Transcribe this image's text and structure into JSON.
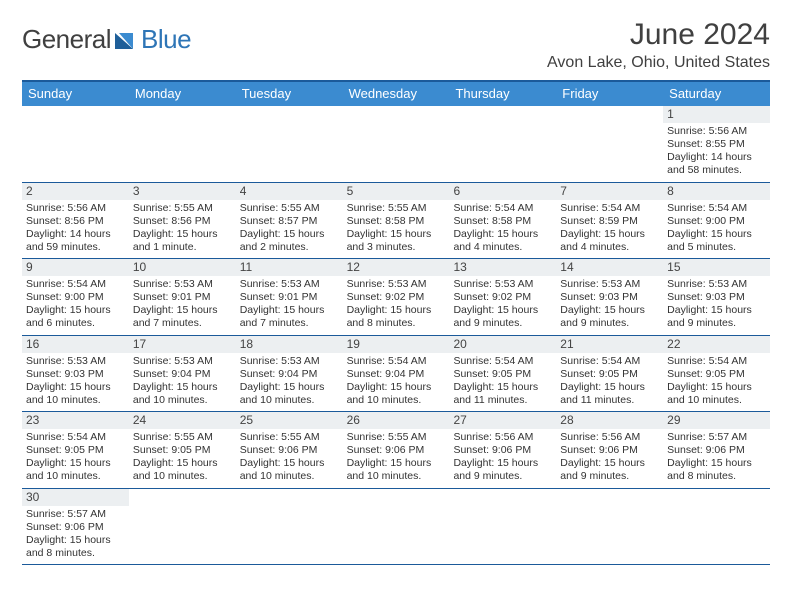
{
  "logo": {
    "dark": "General",
    "blue": "Blue"
  },
  "title": "June 2024",
  "location": "Avon Lake, Ohio, United States",
  "header_bg": "#3b8bd0",
  "border_color": "#1b5a9a",
  "dayHeaders": [
    "Sunday",
    "Monday",
    "Tuesday",
    "Wednesday",
    "Thursday",
    "Friday",
    "Saturday"
  ],
  "weeks": [
    [
      null,
      null,
      null,
      null,
      null,
      null,
      {
        "n": "1",
        "sr": "5:56 AM",
        "ss": "8:55 PM",
        "dl": "14 hours and 58 minutes."
      }
    ],
    [
      {
        "n": "2",
        "sr": "5:56 AM",
        "ss": "8:56 PM",
        "dl": "14 hours and 59 minutes."
      },
      {
        "n": "3",
        "sr": "5:55 AM",
        "ss": "8:56 PM",
        "dl": "15 hours and 1 minute."
      },
      {
        "n": "4",
        "sr": "5:55 AM",
        "ss": "8:57 PM",
        "dl": "15 hours and 2 minutes."
      },
      {
        "n": "5",
        "sr": "5:55 AM",
        "ss": "8:58 PM",
        "dl": "15 hours and 3 minutes."
      },
      {
        "n": "6",
        "sr": "5:54 AM",
        "ss": "8:58 PM",
        "dl": "15 hours and 4 minutes."
      },
      {
        "n": "7",
        "sr": "5:54 AM",
        "ss": "8:59 PM",
        "dl": "15 hours and 4 minutes."
      },
      {
        "n": "8",
        "sr": "5:54 AM",
        "ss": "9:00 PM",
        "dl": "15 hours and 5 minutes."
      }
    ],
    [
      {
        "n": "9",
        "sr": "5:54 AM",
        "ss": "9:00 PM",
        "dl": "15 hours and 6 minutes."
      },
      {
        "n": "10",
        "sr": "5:53 AM",
        "ss": "9:01 PM",
        "dl": "15 hours and 7 minutes."
      },
      {
        "n": "11",
        "sr": "5:53 AM",
        "ss": "9:01 PM",
        "dl": "15 hours and 7 minutes."
      },
      {
        "n": "12",
        "sr": "5:53 AM",
        "ss": "9:02 PM",
        "dl": "15 hours and 8 minutes."
      },
      {
        "n": "13",
        "sr": "5:53 AM",
        "ss": "9:02 PM",
        "dl": "15 hours and 9 minutes."
      },
      {
        "n": "14",
        "sr": "5:53 AM",
        "ss": "9:03 PM",
        "dl": "15 hours and 9 minutes."
      },
      {
        "n": "15",
        "sr": "5:53 AM",
        "ss": "9:03 PM",
        "dl": "15 hours and 9 minutes."
      }
    ],
    [
      {
        "n": "16",
        "sr": "5:53 AM",
        "ss": "9:03 PM",
        "dl": "15 hours and 10 minutes."
      },
      {
        "n": "17",
        "sr": "5:53 AM",
        "ss": "9:04 PM",
        "dl": "15 hours and 10 minutes."
      },
      {
        "n": "18",
        "sr": "5:53 AM",
        "ss": "9:04 PM",
        "dl": "15 hours and 10 minutes."
      },
      {
        "n": "19",
        "sr": "5:54 AM",
        "ss": "9:04 PM",
        "dl": "15 hours and 10 minutes."
      },
      {
        "n": "20",
        "sr": "5:54 AM",
        "ss": "9:05 PM",
        "dl": "15 hours and 11 minutes."
      },
      {
        "n": "21",
        "sr": "5:54 AM",
        "ss": "9:05 PM",
        "dl": "15 hours and 11 minutes."
      },
      {
        "n": "22",
        "sr": "5:54 AM",
        "ss": "9:05 PM",
        "dl": "15 hours and 10 minutes."
      }
    ],
    [
      {
        "n": "23",
        "sr": "5:54 AM",
        "ss": "9:05 PM",
        "dl": "15 hours and 10 minutes."
      },
      {
        "n": "24",
        "sr": "5:55 AM",
        "ss": "9:05 PM",
        "dl": "15 hours and 10 minutes."
      },
      {
        "n": "25",
        "sr": "5:55 AM",
        "ss": "9:06 PM",
        "dl": "15 hours and 10 minutes."
      },
      {
        "n": "26",
        "sr": "5:55 AM",
        "ss": "9:06 PM",
        "dl": "15 hours and 10 minutes."
      },
      {
        "n": "27",
        "sr": "5:56 AM",
        "ss": "9:06 PM",
        "dl": "15 hours and 9 minutes."
      },
      {
        "n": "28",
        "sr": "5:56 AM",
        "ss": "9:06 PM",
        "dl": "15 hours and 9 minutes."
      },
      {
        "n": "29",
        "sr": "5:57 AM",
        "ss": "9:06 PM",
        "dl": "15 hours and 8 minutes."
      }
    ],
    [
      {
        "n": "30",
        "sr": "5:57 AM",
        "ss": "9:06 PM",
        "dl": "15 hours and 8 minutes."
      },
      null,
      null,
      null,
      null,
      null,
      null
    ]
  ],
  "labels": {
    "sunrise": "Sunrise: ",
    "sunset": "Sunset: ",
    "daylight": "Daylight: "
  }
}
